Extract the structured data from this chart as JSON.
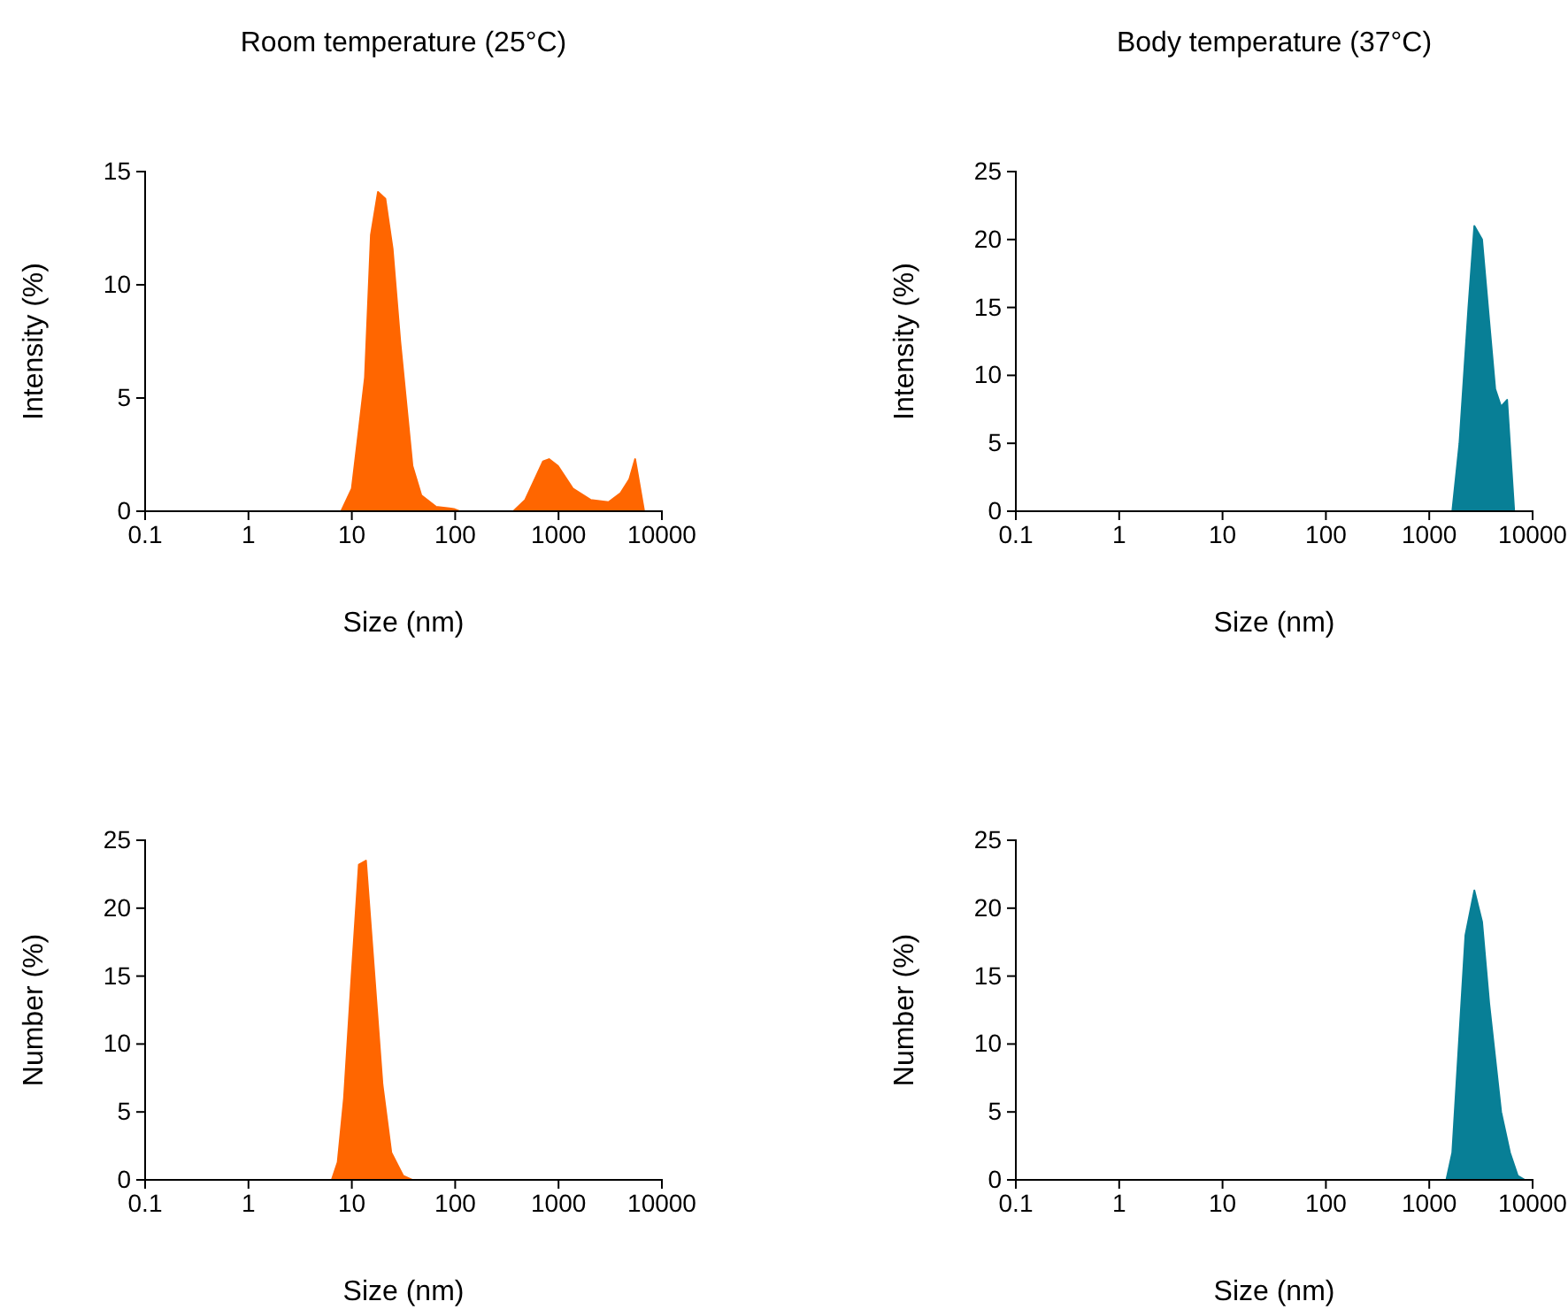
{
  "chart_data": [
    {
      "type": "area",
      "title": "Room temperature  (25°C)",
      "xlabel": "Size (nm)",
      "ylabel": "Intensity (%)",
      "log": "x",
      "xlim": [
        0.1,
        10000
      ],
      "xticks": [
        0.1,
        1,
        10,
        100,
        1000,
        10000
      ],
      "ylim": [
        0,
        15
      ],
      "yticks": [
        0,
        5,
        10,
        15
      ],
      "series": [
        {
          "color": "#ff6600",
          "x": [
            0.4,
            7.9,
            10,
            11.7,
            13.4,
            15.3,
            17.9,
            21.1,
            24.8,
            29.4,
            38.6,
            47,
            65,
            97,
            110,
            366,
            476,
            708,
            809,
            986,
            1374,
            2042,
            3042,
            3981,
            4832,
            5511,
            6730,
            10000
          ],
          "values": [
            0,
            0,
            1.0,
            3.6,
            5.9,
            12.2,
            14.1,
            13.8,
            11.6,
            7.5,
            2.0,
            0.7,
            0.2,
            0.1,
            0,
            0,
            0.5,
            2.2,
            2.3,
            2.0,
            1.0,
            0.5,
            0.4,
            0.8,
            1.4,
            2.3,
            0,
            0
          ]
        }
      ]
    },
    {
      "type": "area",
      "title": "Body temperature (37°C)",
      "xlabel": "Size (nm)",
      "ylabel": "Intensity (%)",
      "log": "x",
      "xlim": [
        0.1,
        10000
      ],
      "xticks": [
        0.1,
        1,
        10,
        100,
        1000,
        10000
      ],
      "ylim": [
        0,
        25
      ],
      "yticks": [
        0,
        5,
        10,
        15,
        20,
        25
      ],
      "series": [
        {
          "color": "#087f96",
          "x": [
            0.4,
            1671,
            1960,
            2393,
            2731,
            3243,
            3800,
            4345,
            4958,
            5665,
            6637,
            10000
          ],
          "values": [
            0,
            0,
            5,
            15,
            21,
            20,
            14,
            9,
            7.7,
            8.2,
            0,
            0
          ]
        }
      ]
    },
    {
      "type": "area",
      "xlabel": "Size (nm)",
      "ylabel": "Number (%)",
      "log": "x",
      "xlim": [
        0.1,
        10000
      ],
      "xticks": [
        0.1,
        1,
        10,
        100,
        1000,
        10000
      ],
      "ylim": [
        0,
        25
      ],
      "yticks": [
        0,
        5,
        10,
        15,
        20,
        25
      ],
      "series": [
        {
          "color": "#ff6600",
          "x": [
            0.4,
            6.4,
            7.3,
            8.4,
            9.95,
            11.7,
            13.7,
            16.2,
            19.8,
            24.1,
            31.4,
            38.3,
            10000
          ],
          "values": [
            0,
            0,
            1.3,
            6,
            15,
            23.2,
            23.5,
            16,
            7,
            2,
            0.3,
            0,
            0
          ]
        }
      ]
    },
    {
      "type": "area",
      "xlabel": "Size (nm)",
      "ylabel": "Number (%)",
      "log": "x",
      "xlim": [
        0.1,
        10000
      ],
      "xticks": [
        0.1,
        1,
        10,
        100,
        1000,
        10000
      ],
      "ylim": [
        0,
        25
      ],
      "yticks": [
        0,
        5,
        10,
        15,
        20,
        25
      ],
      "series": [
        {
          "color": "#087f96",
          "x": [
            0.4,
            1465,
            1671,
            2239,
            2731,
            3243,
            3800,
            4958,
            6039,
            7179,
            8414,
            10000
          ],
          "values": [
            0,
            0,
            2,
            18,
            21.3,
            19,
            13,
            5,
            2,
            0.3,
            0,
            0
          ]
        }
      ]
    }
  ]
}
